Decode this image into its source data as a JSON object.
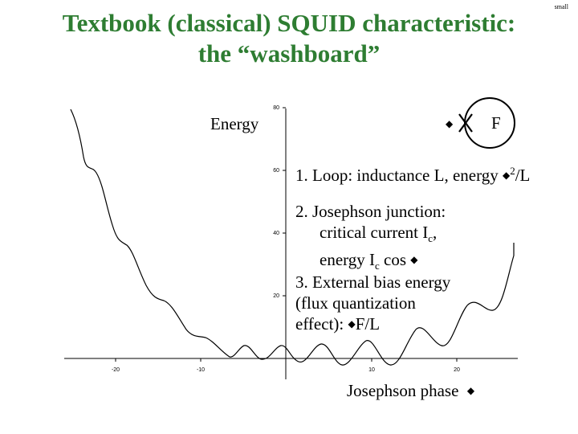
{
  "title": {
    "line1": "Textbook (classical) SQUID characteristic:",
    "line2": "the “washboard”"
  },
  "corner_label": "small",
  "axes": {
    "y_label": "Energy",
    "x_label": "Josephson phase",
    "x_ticks": [
      "-20",
      "-10",
      "10",
      "20"
    ],
    "y_ticks": [
      "80",
      "60",
      "40",
      "20"
    ]
  },
  "symbols": {
    "diamond": "◆",
    "flux": "F",
    "junction": "✕"
  },
  "items": {
    "loop_prefix": "1. Loop: inductance L, energy ",
    "loop_suffix": "/L",
    "loop_power": "2",
    "jj_line1": "2. Josephson junction:",
    "jj_line2": "critical current I",
    "jj_line2_sub": "c",
    "jj_line2_end": ",",
    "jj_line3": "energy I",
    "jj_line3_sub": "c",
    "jj_line3_mid": " cos ",
    "bias_line1": "3. External bias energy",
    "bias_line2": "(flux quantization",
    "bias_line3": "effect): ",
    "bias_line3_end": "/L"
  },
  "colors": {
    "title": "#2e7d32",
    "curve": "#000000",
    "axis": "#000000"
  }
}
